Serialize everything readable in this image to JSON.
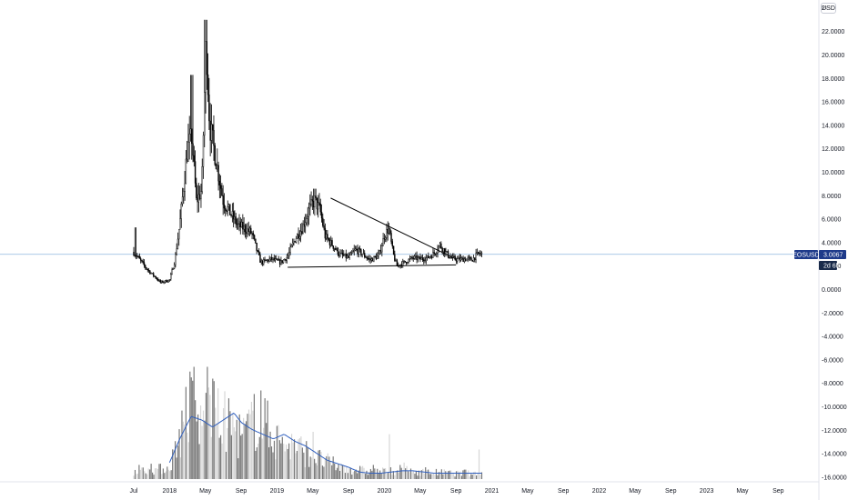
{
  "header": {
    "currency_label": "USD"
  },
  "colors": {
    "candle": "#000000",
    "volume_up": "#7a7a7a",
    "volume_down": "#d6d6d6",
    "volume_ma": "#2f5fbf",
    "price_line": "#8fb6dd",
    "tag_dark": "#1e3a8a",
    "tag_light": "#1a2b4a"
  },
  "price_tag": {
    "symbol": "EOSUSD",
    "price": "3.0067",
    "countdown": "2d 6h"
  },
  "chart_data": {
    "type": "candlestick",
    "y_axis_top_label_fragment": "2·",
    "yticks": [
      "22.0000",
      "20.0000",
      "18.0000",
      "16.0000",
      "14.0000",
      "12.0000",
      "10.0000",
      "8.0000",
      "6.0000",
      "4.0000",
      "2.0000",
      "0.0000",
      "-2.0000",
      "-4.0000",
      "-6.0000",
      "-8.0000",
      "-10.0000",
      "-12.0000",
      "-14.0000",
      "-16.0000"
    ],
    "ytick_values": [
      22,
      20,
      18,
      16,
      14,
      12,
      10,
      8,
      6,
      4,
      2,
      0,
      -2,
      -4,
      -6,
      -8,
      -10,
      -12,
      -14,
      -16
    ],
    "ylim": [
      -16.5,
      24.4
    ],
    "xticks": [
      "Jul",
      "2018",
      "May",
      "Sep",
      "2019",
      "May",
      "Sep",
      "2020",
      "May",
      "Sep",
      "2021",
      "May",
      "Sep",
      "2022",
      "May",
      "Sep",
      "2023",
      "May",
      "Sep"
    ],
    "last_price": 3.0067,
    "trendline_upper": {
      "from": [
        5.5,
        7.8
      ],
      "to": [
        9.0,
        2.6
      ]
    },
    "trendline_lower": {
      "from": [
        4.3,
        1.9
      ],
      "to": [
        9.0,
        2.1
      ]
    },
    "price_keypoints": [
      [
        0,
        3.2
      ],
      [
        0.35,
        1.8
      ],
      [
        0.75,
        0.6
      ],
      [
        1.0,
        0.8
      ],
      [
        1.15,
        2.5
      ],
      [
        1.3,
        6.0
      ],
      [
        1.5,
        12
      ],
      [
        1.62,
        13
      ],
      [
        1.75,
        7.5
      ],
      [
        1.9,
        8.5
      ],
      [
        2.02,
        21.5
      ],
      [
        2.12,
        14
      ],
      [
        2.3,
        11
      ],
      [
        2.5,
        7.5
      ],
      [
        2.7,
        6.5
      ],
      [
        2.9,
        5.5
      ],
      [
        3.1,
        5.2
      ],
      [
        3.3,
        4.8
      ],
      [
        3.45,
        3.2
      ],
      [
        3.55,
        2.3
      ],
      [
        3.85,
        2.6
      ],
      [
        4.1,
        2.3
      ],
      [
        4.3,
        2.8
      ],
      [
        4.5,
        4.3
      ],
      [
        4.7,
        5.2
      ],
      [
        4.9,
        6.8
      ],
      [
        5.05,
        7.6
      ],
      [
        5.2,
        6.8
      ],
      [
        5.35,
        4.5
      ],
      [
        5.55,
        3.8
      ],
      [
        5.75,
        3.0
      ],
      [
        6.0,
        2.7
      ],
      [
        6.2,
        3.4
      ],
      [
        6.4,
        3.0
      ],
      [
        6.6,
        2.5
      ],
      [
        6.85,
        2.9
      ],
      [
        7.0,
        4.6
      ],
      [
        7.12,
        5.2
      ],
      [
        7.25,
        3.0
      ],
      [
        7.35,
        2.0
      ],
      [
        7.55,
        2.3
      ],
      [
        7.8,
        2.7
      ],
      [
        8.0,
        2.6
      ],
      [
        8.2,
        2.7
      ],
      [
        8.4,
        3.1
      ],
      [
        8.55,
        3.8
      ],
      [
        8.7,
        3.2
      ],
      [
        8.85,
        2.7
      ],
      [
        9.05,
        2.55
      ],
      [
        9.25,
        2.6
      ],
      [
        9.45,
        2.55
      ],
      [
        9.62,
        3.05
      ],
      [
        9.72,
        3.0
      ]
    ],
    "volume_keypoints": [
      [
        0,
        0.08
      ],
      [
        0.6,
        0.1
      ],
      [
        1.0,
        0.12
      ],
      [
        1.15,
        0.35
      ],
      [
        1.4,
        0.55
      ],
      [
        1.6,
        0.8
      ],
      [
        1.8,
        0.55
      ],
      [
        2.0,
        0.75
      ],
      [
        2.15,
        0.7
      ],
      [
        2.4,
        0.62
      ],
      [
        2.7,
        0.58
      ],
      [
        3.0,
        0.45
      ],
      [
        3.3,
        0.55
      ],
      [
        3.5,
        0.7
      ],
      [
        3.8,
        0.5
      ],
      [
        4.1,
        0.38
      ],
      [
        4.5,
        0.35
      ],
      [
        4.8,
        0.28
      ],
      [
        5.1,
        0.22
      ],
      [
        5.4,
        0.18
      ],
      [
        5.8,
        0.12
      ],
      [
        6.2,
        0.1
      ],
      [
        6.6,
        0.08
      ],
      [
        7.0,
        0.08
      ],
      [
        7.4,
        0.1
      ],
      [
        7.8,
        0.08
      ],
      [
        8.2,
        0.07
      ],
      [
        8.6,
        0.07
      ],
      [
        9.0,
        0.06
      ],
      [
        9.3,
        0.06
      ],
      [
        9.72,
        0.06
      ]
    ],
    "volume_ma_keypoints": [
      [
        1.0,
        0.14
      ],
      [
        1.3,
        0.35
      ],
      [
        1.6,
        0.53
      ],
      [
        1.9,
        0.5
      ],
      [
        2.2,
        0.44
      ],
      [
        2.5,
        0.5
      ],
      [
        2.8,
        0.56
      ],
      [
        3.0,
        0.48
      ],
      [
        3.3,
        0.42
      ],
      [
        3.6,
        0.38
      ],
      [
        3.9,
        0.34
      ],
      [
        4.2,
        0.38
      ],
      [
        4.5,
        0.32
      ],
      [
        4.8,
        0.28
      ],
      [
        5.1,
        0.22
      ],
      [
        5.4,
        0.16
      ],
      [
        5.7,
        0.13
      ],
      [
        6.0,
        0.1
      ],
      [
        6.3,
        0.06
      ],
      [
        6.6,
        0.05
      ],
      [
        6.9,
        0.05
      ],
      [
        7.2,
        0.06
      ],
      [
        7.5,
        0.07
      ],
      [
        7.8,
        0.07
      ],
      [
        8.1,
        0.06
      ],
      [
        8.4,
        0.05
      ],
      [
        8.7,
        0.05
      ],
      [
        9.0,
        0.05
      ],
      [
        9.35,
        0.05
      ],
      [
        9.72,
        0.05
      ]
    ],
    "volume_spikes": [
      [
        0.15,
        0.12
      ],
      [
        0.5,
        0.13
      ],
      [
        1.12,
        0.25
      ],
      [
        1.35,
        0.58
      ],
      [
        1.45,
        0.78
      ],
      [
        1.68,
        0.95
      ],
      [
        1.95,
        0.58
      ],
      [
        2.05,
        0.95
      ],
      [
        2.2,
        0.85
      ],
      [
        2.5,
        0.6
      ],
      [
        3.25,
        0.55
      ],
      [
        3.35,
        0.72
      ],
      [
        3.55,
        0.75
      ],
      [
        4.0,
        0.45
      ],
      [
        5.0,
        0.4
      ],
      [
        6.7,
        0.12
      ],
      [
        7.15,
        0.38
      ],
      [
        7.55,
        0.14
      ],
      [
        8.15,
        0.1
      ],
      [
        9.25,
        0.08
      ],
      [
        9.65,
        0.25
      ]
    ]
  }
}
